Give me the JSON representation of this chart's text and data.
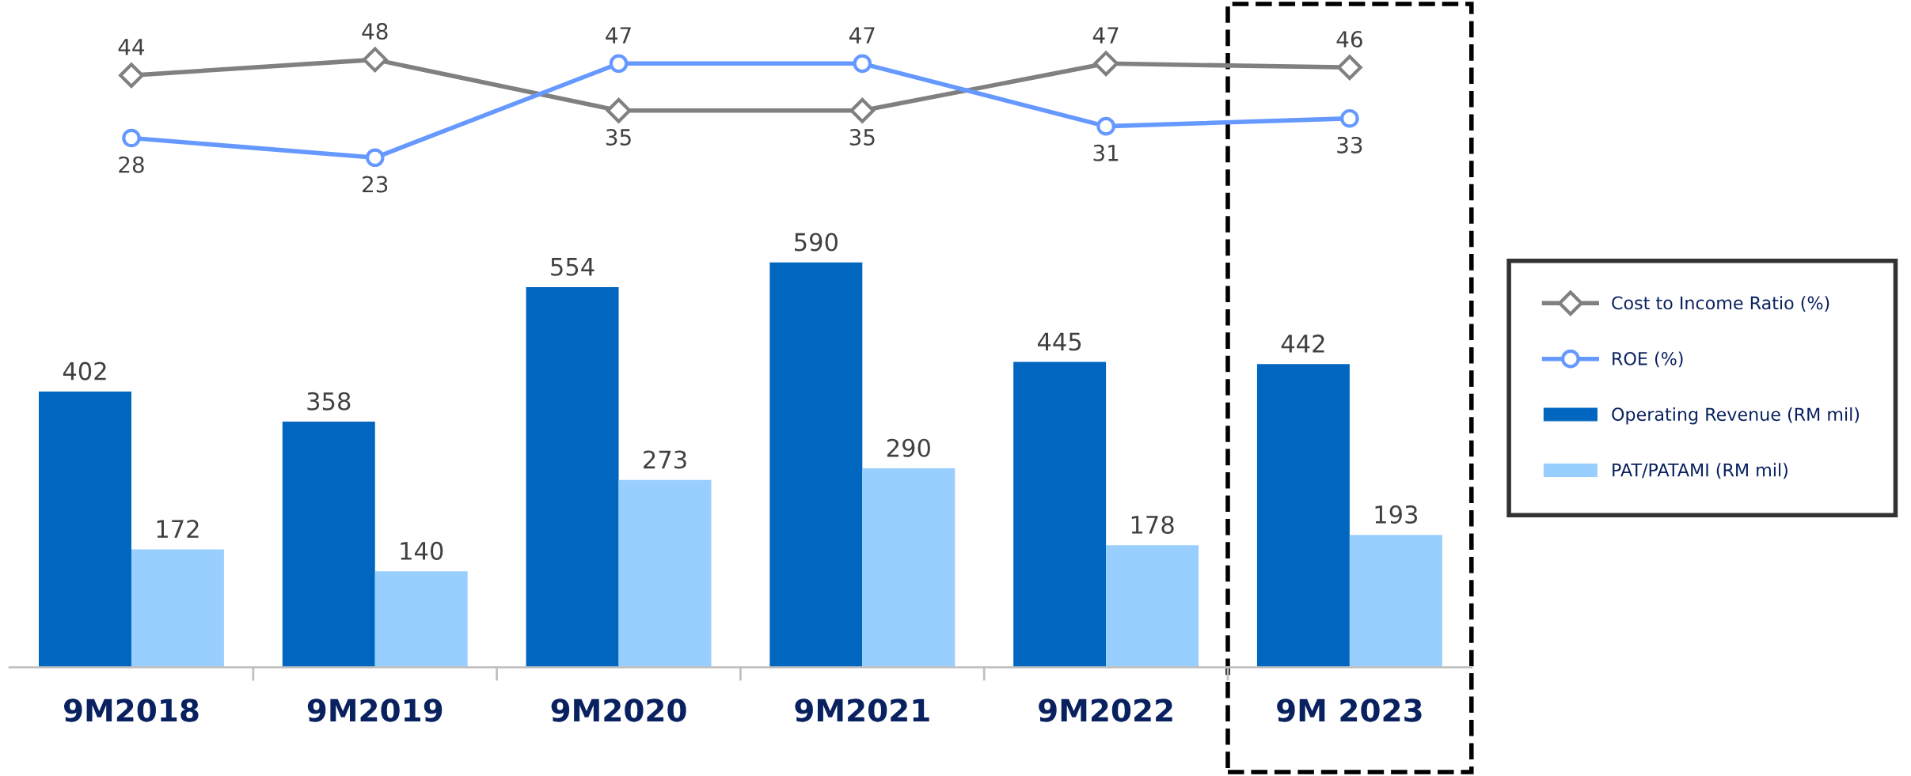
{
  "chart_data": [
    {
      "type": "line",
      "categories": [
        null,
        null,
        null,
        null,
        null,
        null
      ],
      "series": [
        {
          "name": "Cost to Income Ratio (%)",
          "color": "#808080",
          "marker": "diamond",
          "values": [
            44,
            48,
            35,
            35,
            47,
            46
          ]
        },
        {
          "name": "ROE (%)",
          "color": "#6699ff",
          "marker": "circle",
          "values": [
            28,
            23,
            47,
            47,
            31,
            33
          ]
        }
      ],
      "data_labels": true,
      "grid": false,
      "legend": "right",
      "line_style": "solid"
    },
    {
      "type": "bar",
      "categories": [
        "9M2018",
        "9M2019",
        "9M2020",
        "9M2021",
        "9M2022",
        "9M 2023"
      ],
      "series": [
        {
          "name": "Operating Revenue (RM mil)",
          "color": "#0066bf",
          "values": [
            402,
            358,
            554,
            590,
            445,
            442
          ]
        },
        {
          "name": "PAT/PATAMI (RM mil)",
          "color": "#99cfff",
          "values": [
            172,
            140,
            273,
            290,
            178,
            193
          ]
        }
      ],
      "data_labels": true,
      "grid": false,
      "legend": "right"
    }
  ]
}
